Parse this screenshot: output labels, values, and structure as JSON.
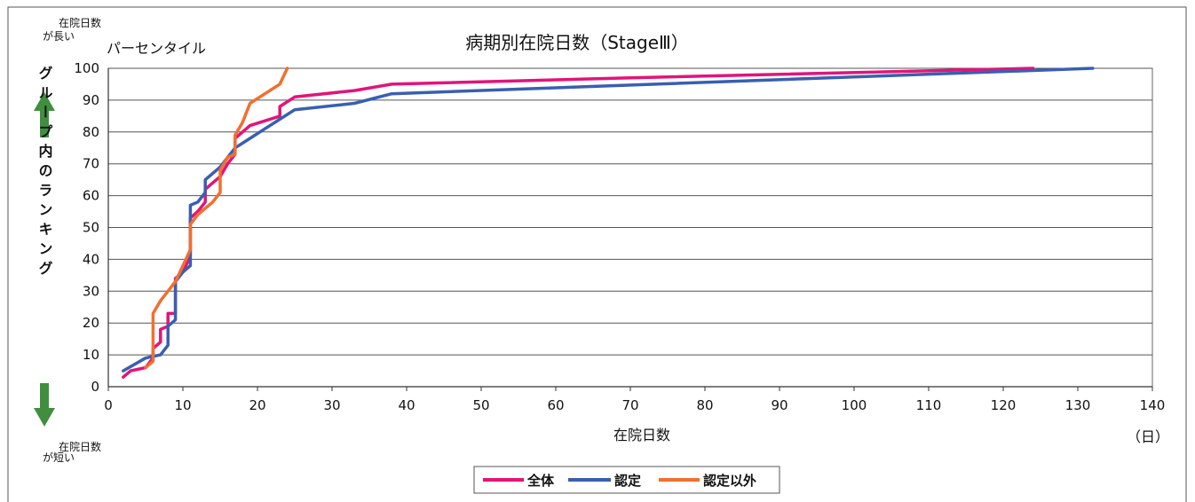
{
  "chart_data": {
    "type": "line",
    "title": "病期別在院日数（StageⅢ）",
    "xlabel": "在院日数",
    "x_unit": "（日）",
    "ylabel": "パーセンタイル",
    "y_side_label": "グループ内のランキング",
    "top_note_a": "が長い",
    "top_note_b": "在院日数",
    "bottom_note_a": "が短い",
    "bottom_note_b": "在院日数",
    "xlim": [
      0,
      140
    ],
    "ylim": [
      0,
      100
    ],
    "x_ticks": [
      "0",
      "10",
      "20",
      "30",
      "40",
      "50",
      "60",
      "70",
      "80",
      "90",
      "100",
      "110",
      "120",
      "130",
      "140"
    ],
    "y_ticks": [
      "0",
      "10",
      "20",
      "30",
      "40",
      "50",
      "60",
      "70",
      "80",
      "90",
      "100"
    ],
    "grid": "horizontal",
    "legend_position": "bottom",
    "series": [
      {
        "name": "全体",
        "color": "#e0157a",
        "points": [
          [
            2,
            3
          ],
          [
            3,
            5
          ],
          [
            5,
            6
          ],
          [
            6,
            9
          ],
          [
            6,
            12
          ],
          [
            7,
            14
          ],
          [
            7,
            18
          ],
          [
            8,
            19
          ],
          [
            8,
            23
          ],
          [
            9,
            23
          ],
          [
            9,
            34
          ],
          [
            10,
            36
          ],
          [
            11,
            41
          ],
          [
            11,
            53
          ],
          [
            12,
            55
          ],
          [
            13,
            58
          ],
          [
            13,
            62
          ],
          [
            14,
            64
          ],
          [
            15,
            66
          ],
          [
            16,
            70
          ],
          [
            17,
            73
          ],
          [
            17,
            78
          ],
          [
            19,
            82
          ],
          [
            23,
            85
          ],
          [
            23,
            88
          ],
          [
            25,
            91
          ],
          [
            33,
            93
          ],
          [
            38,
            95
          ],
          [
            70,
            97
          ],
          [
            124,
            100
          ]
        ]
      },
      {
        "name": "認定",
        "color": "#3a5fb0",
        "points": [
          [
            2,
            5
          ],
          [
            5,
            9
          ],
          [
            7,
            10
          ],
          [
            8,
            13
          ],
          [
            8,
            19
          ],
          [
            9,
            21
          ],
          [
            9,
            33
          ],
          [
            10,
            36
          ],
          [
            11,
            38
          ],
          [
            11,
            57
          ],
          [
            12,
            58
          ],
          [
            13,
            61
          ],
          [
            13,
            65
          ],
          [
            14,
            67
          ],
          [
            15,
            69
          ],
          [
            17,
            75
          ],
          [
            19,
            78
          ],
          [
            21,
            81
          ],
          [
            25,
            87
          ],
          [
            33,
            89
          ],
          [
            38,
            92
          ],
          [
            132,
            100
          ]
        ]
      },
      {
        "name": "認定以外",
        "color": "#f07030",
        "points": [
          [
            5,
            6
          ],
          [
            6,
            8
          ],
          [
            6,
            23
          ],
          [
            7,
            27
          ],
          [
            8,
            30
          ],
          [
            9,
            33
          ],
          [
            10,
            38
          ],
          [
            11,
            43
          ],
          [
            11,
            51
          ],
          [
            12,
            54
          ],
          [
            14,
            58
          ],
          [
            15,
            61
          ],
          [
            15,
            68
          ],
          [
            16,
            72
          ],
          [
            17,
            73
          ],
          [
            17,
            79
          ],
          [
            18,
            83
          ],
          [
            19,
            89
          ],
          [
            21,
            92
          ],
          [
            23,
            95
          ],
          [
            24,
            100
          ]
        ]
      }
    ]
  }
}
